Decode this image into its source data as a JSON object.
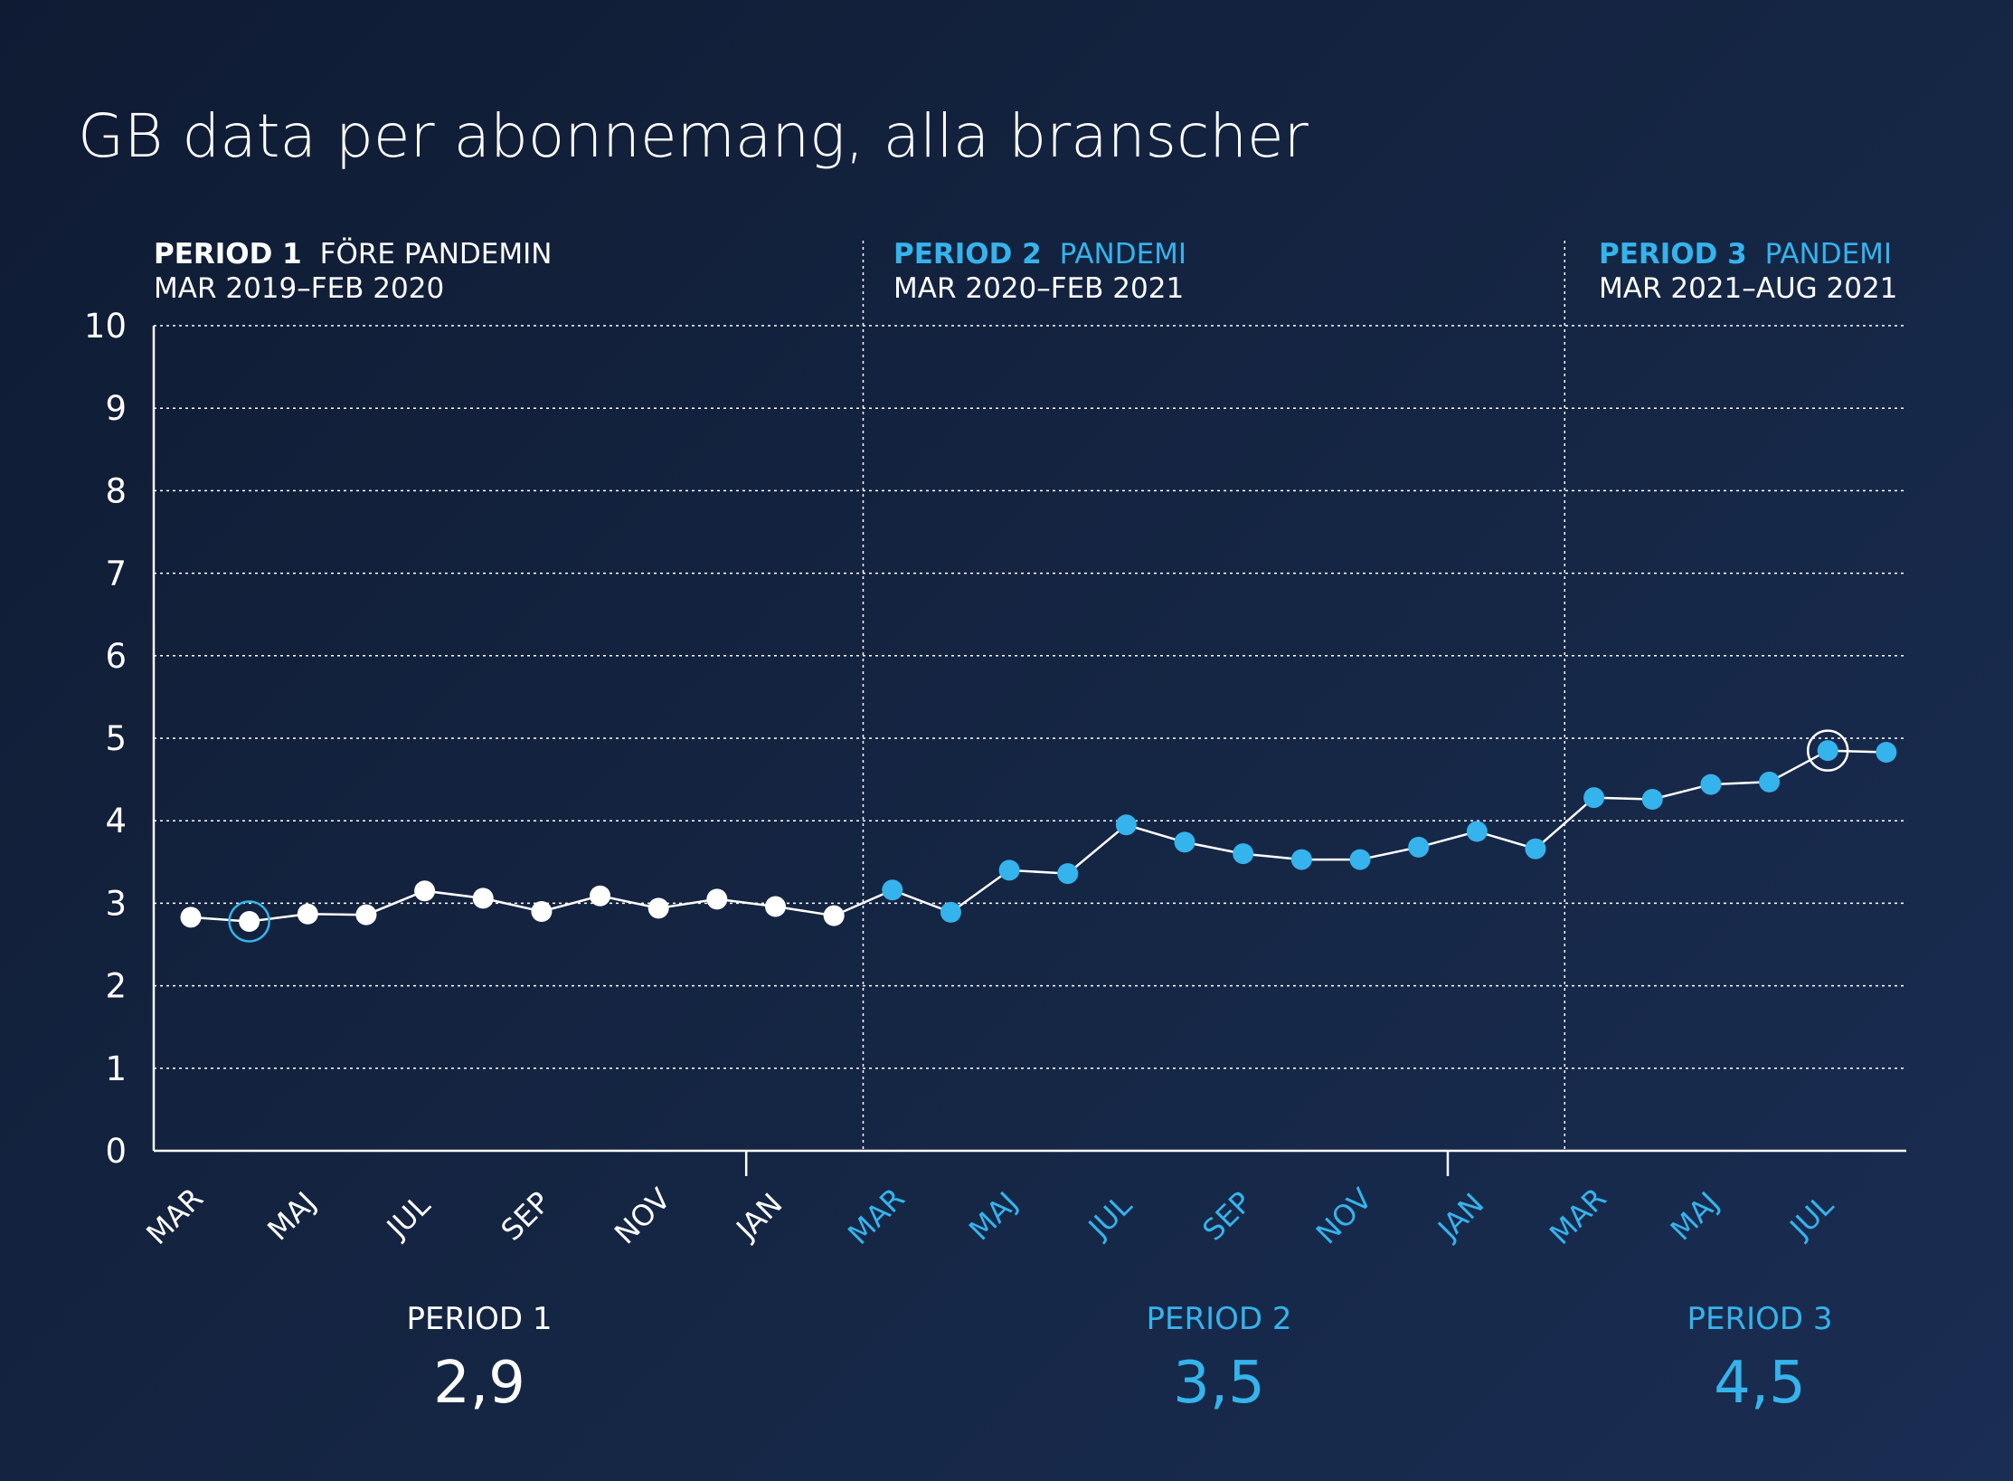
{
  "title": "GB data per abonnemang, alla branscher",
  "colors": {
    "white": "#ffffff",
    "accent": "#35b3ec",
    "background": "#13223f"
  },
  "periods": [
    {
      "name": "PERIOD 1",
      "label": "FÖRE PANDEMIN",
      "range": "MAR 2019–FEB 2020",
      "summary_label": "PERIOD 1",
      "summary_value": "2,9",
      "color": "#ffffff"
    },
    {
      "name": "PERIOD 2",
      "label": "PANDEMI",
      "range": "MAR 2020–FEB 2021",
      "summary_label": "PERIOD 2",
      "summary_value": "3,5",
      "color": "#35b3ec"
    },
    {
      "name": "PERIOD 3",
      "label": "PANDEMI",
      "range": "MAR 2021–AUG 2021",
      "summary_label": "PERIOD 3",
      "summary_value": "4,5",
      "color": "#35b3ec"
    }
  ],
  "chart_data": {
    "type": "line",
    "title": "GB data per abonnemang, alla branscher",
    "ylim": [
      0,
      10
    ],
    "yticks": [
      0,
      1,
      2,
      3,
      4,
      5,
      6,
      7,
      8,
      9,
      10
    ],
    "grid": true,
    "x": [
      "2019-03",
      "2019-04",
      "2019-05",
      "2019-06",
      "2019-07",
      "2019-08",
      "2019-09",
      "2019-10",
      "2019-11",
      "2019-12",
      "2020-01",
      "2020-02",
      "2020-03",
      "2020-04",
      "2020-05",
      "2020-06",
      "2020-07",
      "2020-08",
      "2020-09",
      "2020-10",
      "2020-11",
      "2020-12",
      "2021-01",
      "2021-02",
      "2021-03",
      "2021-04",
      "2021-05",
      "2021-06",
      "2021-07",
      "2021-08"
    ],
    "xtick_labels": [
      {
        "label": "MAR",
        "index": 0,
        "color": "#ffffff"
      },
      {
        "label": "MAJ",
        "index": 2,
        "color": "#ffffff"
      },
      {
        "label": "JUL",
        "index": 4,
        "color": "#ffffff"
      },
      {
        "label": "SEP",
        "index": 6,
        "color": "#ffffff"
      },
      {
        "label": "NOV",
        "index": 8,
        "color": "#ffffff"
      },
      {
        "label": "JAN",
        "index": 10,
        "color": "#ffffff"
      },
      {
        "label": "MAR",
        "index": 12,
        "color": "#35b3ec"
      },
      {
        "label": "MAJ",
        "index": 14,
        "color": "#35b3ec"
      },
      {
        "label": "JUL",
        "index": 16,
        "color": "#35b3ec"
      },
      {
        "label": "SEP",
        "index": 18,
        "color": "#35b3ec"
      },
      {
        "label": "NOV",
        "index": 20,
        "color": "#35b3ec"
      },
      {
        "label": "JAN",
        "index": 22,
        "color": "#35b3ec"
      },
      {
        "label": "MAR",
        "index": 24,
        "color": "#35b3ec"
      },
      {
        "label": "MAJ",
        "index": 26,
        "color": "#35b3ec"
      },
      {
        "label": "JUL",
        "index": 28,
        "color": "#35b3ec"
      }
    ],
    "values": [
      2.83,
      2.78,
      2.87,
      2.86,
      3.15,
      3.06,
      2.9,
      3.09,
      2.94,
      3.05,
      2.96,
      2.85,
      3.16,
      2.89,
      3.4,
      3.36,
      3.95,
      3.74,
      3.6,
      3.53,
      3.53,
      3.68,
      3.87,
      3.66,
      4.28,
      4.26,
      4.44,
      4.47,
      4.85,
      4.83
    ],
    "period_boundaries_after_index": [
      11,
      23
    ],
    "year_ticks_index": [
      10,
      22
    ],
    "highlighted_points": [
      {
        "index": 1,
        "ring_color": "#35b3ec"
      },
      {
        "index": 28,
        "ring_color": "#ffffff"
      }
    ],
    "series": [
      {
        "values_range": [
          0,
          11
        ],
        "point_color": "#ffffff"
      },
      {
        "values_range": [
          12,
          29
        ],
        "point_color": "#35b3ec"
      }
    ],
    "line_color": "#ffffff"
  }
}
